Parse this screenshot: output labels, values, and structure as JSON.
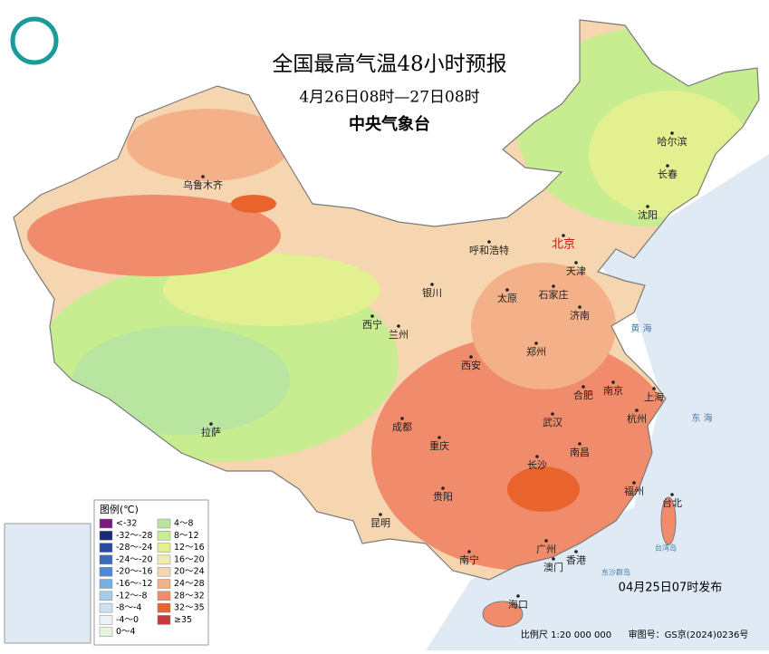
{
  "header": {
    "title": "全国最高气温48小时预报",
    "subtitle": "4月26日08时—27日08时",
    "agency": "中央气象台"
  },
  "cities": [
    "乌鲁木齐",
    "哈尔滨",
    "长春",
    "沈阳",
    "呼和浩特",
    "北京",
    "天津",
    "银川",
    "太原",
    "石家庄",
    "西宁",
    "兰州",
    "济南",
    "郑州",
    "西安",
    "合肥",
    "南京",
    "上海",
    "成都",
    "武汉",
    "杭州",
    "重庆",
    "拉萨",
    "长沙",
    "南昌",
    "贵阳",
    "福州",
    "昆明",
    "台北",
    "南宁",
    "广州",
    "香港",
    "澳门",
    "海口"
  ],
  "seas": [
    "黄 海",
    "东 海",
    "台湾岛",
    "东沙群岛"
  ],
  "legend": {
    "title": "图例(℃)",
    "items": [
      {
        "label": "<-32",
        "color": "#7a1a7a"
      },
      {
        "label": "-32～-28",
        "color": "#1a2a7a"
      },
      {
        "label": "-28～-24",
        "color": "#2a4a9a"
      },
      {
        "label": "-24～-20",
        "color": "#3a6ab8"
      },
      {
        "label": "-20～-16",
        "color": "#4a8ad8"
      },
      {
        "label": "-16～-12",
        "color": "#78aee0"
      },
      {
        "label": "-12～-8",
        "color": "#a6cce8"
      },
      {
        "label": "-8～-4",
        "color": "#cce2f0"
      },
      {
        "label": "-4～0",
        "color": "#e8f2f8"
      },
      {
        "label": "0～4",
        "color": "#e6f5e0"
      },
      {
        "label": "4～8",
        "color": "#b8e6a0"
      },
      {
        "label": "8～12",
        "color": "#c8ec90"
      },
      {
        "label": "12～16",
        "color": "#e2f090"
      },
      {
        "label": "16～20",
        "color": "#f2ecb0"
      },
      {
        "label": "20～24",
        "color": "#f6d6b0"
      },
      {
        "label": "24～28",
        "color": "#f4b088"
      },
      {
        "label": "28～32",
        "color": "#f08c6c"
      },
      {
        "label": "32～35",
        "color": "#e8642c"
      },
      {
        "label": "≥35",
        "color": "#c83a3a"
      }
    ]
  },
  "footer": {
    "issued": "04月25日07时发布",
    "scale": "比例尺 1:20 000 000",
    "approval": "审图号：GS京(2024)0236号"
  }
}
